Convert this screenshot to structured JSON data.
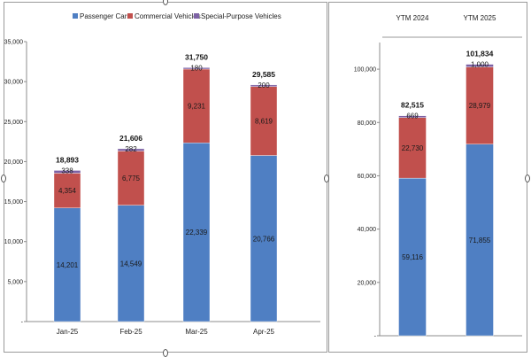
{
  "colors": {
    "passenger": "#4f7fc3",
    "commercial": "#c1504d",
    "special": "#7d62a5"
  },
  "legend": {
    "placement": "top",
    "items": [
      {
        "label": "Passenger Cars",
        "color": "#4f7fc3"
      },
      {
        "label": "Commercial Vehicles",
        "color": "#c1504d"
      },
      {
        "label": "Special-Purpose Vehicles",
        "color": "#7d62a5"
      }
    ]
  },
  "chart_data": [
    {
      "type": "bar",
      "stacked": true,
      "categories": [
        "Jan-25",
        "Feb-25",
        "Mar-25",
        "Apr-25"
      ],
      "series": [
        {
          "name": "Passenger Cars",
          "values": [
            14201,
            14549,
            22339,
            20766
          ]
        },
        {
          "name": "Commercial Vehicles",
          "values": [
            4354,
            6775,
            9231,
            8619
          ]
        },
        {
          "name": "Special-Purpose Vehicles",
          "values": [
            338,
            282,
            180,
            200
          ]
        }
      ],
      "data_labels": {
        "Passenger Cars": [
          "14,201",
          "14,549",
          "22,339",
          "20,766"
        ],
        "Commercial Vehicles": [
          "4,354",
          "6,775",
          "9,231",
          "8,619"
        ],
        "Special-Purpose Vehicles": [
          "338",
          "282",
          "180",
          "200"
        ]
      },
      "totals": [
        "18,893",
        "21,606",
        "31,750",
        "29,585"
      ],
      "ylim": [
        0,
        35000
      ],
      "yticks": [
        0,
        5000,
        10000,
        15000,
        20000,
        25000,
        30000,
        35000
      ],
      "ytick_labels": [
        "-",
        "5,000",
        "10,000",
        "15,000",
        "20,000",
        "25,000",
        "30,000",
        "35,000"
      ],
      "grid": false
    },
    {
      "type": "bar",
      "stacked": true,
      "categories": [
        "YTM 2024",
        "YTM 2025"
      ],
      "category_axis": "top",
      "series": [
        {
          "name": "Passenger Cars",
          "values": [
            59116,
            71855
          ]
        },
        {
          "name": "Commercial Vehicles",
          "values": [
            22730,
            28979
          ]
        },
        {
          "name": "Special-Purpose Vehicles",
          "values": [
            669,
            1000
          ]
        }
      ],
      "data_labels": {
        "Passenger Cars": [
          "59,116",
          "71,855"
        ],
        "Commercial Vehicles": [
          "22,730",
          "28,979"
        ],
        "Special-Purpose Vehicles": [
          "669",
          "1,000"
        ]
      },
      "totals": [
        "82,515",
        "101,834"
      ],
      "ylim": [
        0,
        110000
      ],
      "yticks": [
        0,
        20000,
        40000,
        60000,
        80000,
        100000
      ],
      "ytick_labels": [
        "-",
        "20,000",
        "40,000",
        "60,000",
        "80,000",
        "100,000"
      ],
      "grid": false
    }
  ]
}
